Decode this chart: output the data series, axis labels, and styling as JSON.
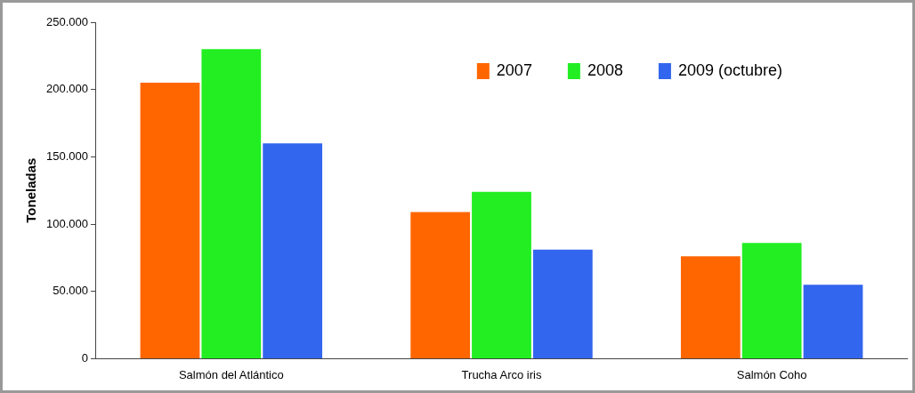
{
  "chart_data": {
    "type": "bar",
    "ylabel": "Toneladas",
    "categories": [
      "Salmón del Atlántico",
      "Trucha Arco iris",
      "Salmón Coho"
    ],
    "series": [
      {
        "name": "2007",
        "color": "#ff6600",
        "values": [
          205000,
          109000,
          76000
        ]
      },
      {
        "name": "2008",
        "color": "#22ee22",
        "values": [
          230000,
          124000,
          86000
        ]
      },
      {
        "name": "2009 (octubre)",
        "color": "#3366ee",
        "values": [
          160000,
          81000,
          55000
        ]
      }
    ],
    "ylim": [
      0,
      250000
    ],
    "yticks": [
      {
        "value": 0,
        "label": "0"
      },
      {
        "value": 50000,
        "label": "50.000"
      },
      {
        "value": 100000,
        "label": "100.000"
      },
      {
        "value": 150000,
        "label": "150.000"
      },
      {
        "value": 200000,
        "label": "200.000"
      },
      {
        "value": 250000,
        "label": "250.000"
      }
    ],
    "grid": false,
    "legend": "top right"
  }
}
